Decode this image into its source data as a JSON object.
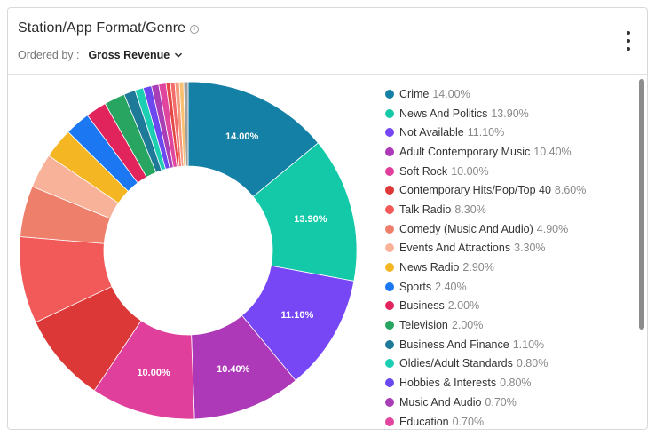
{
  "header": {
    "title": "Station/App Format/Genre",
    "info_icon": "info-circle-icon",
    "ordered_by_label": "Ordered by :",
    "ordered_by_value": "Gross Revenue",
    "menu_icon": "kebab-menu-icon"
  },
  "chart_data": {
    "type": "pie",
    "donut": true,
    "categories": [
      "Crime",
      "News And Politics",
      "Not Available",
      "Adult Contemporary Music",
      "Soft Rock",
      "Contemporary Hits/Pop/Top 40",
      "Talk Radio",
      "Comedy (Music And Audio)",
      "Events And Attractions",
      "News Radio",
      "Sports",
      "Business",
      "Television",
      "Business And Finance",
      "Oldies/Adult Standards",
      "Hobbies & Interests",
      "Music And Audio",
      "Education"
    ],
    "values": [
      14.0,
      13.9,
      11.1,
      10.4,
      10.0,
      8.6,
      8.3,
      4.9,
      3.3,
      2.9,
      2.4,
      2.0,
      2.0,
      1.1,
      0.8,
      0.8,
      0.7,
      0.7
    ],
    "value_labels": [
      "14.00%",
      "13.90%",
      "11.10%",
      "10.40%",
      "10.00%",
      "8.60%",
      "8.30%",
      "4.90%",
      "3.30%",
      "2.90%",
      "2.40%",
      "2.00%",
      "2.00%",
      "1.10%",
      "0.80%",
      "0.80%",
      "0.70%",
      "0.70%"
    ],
    "slice_labels_shown": [
      "14.00%",
      "13.90%",
      "11.10%",
      "10.40%",
      "10.00%"
    ],
    "colors": [
      "#1480a6",
      "#14c9a8",
      "#7747f5",
      "#ad39b8",
      "#e03f9c",
      "#dc3838",
      "#f25a5a",
      "#ee7f6b",
      "#f9b29a",
      "#f5b623",
      "#1b78f2",
      "#e2245d",
      "#27a561",
      "#1f7a99",
      "#1ccfb3",
      "#6b48f0",
      "#a83fb7",
      "#e0469d"
    ],
    "remainder_colors": [
      "#e54646",
      "#f36b6b",
      "#f59a7c",
      "#f8c070",
      "#a0a0a0"
    ],
    "legend_placement": "right"
  }
}
